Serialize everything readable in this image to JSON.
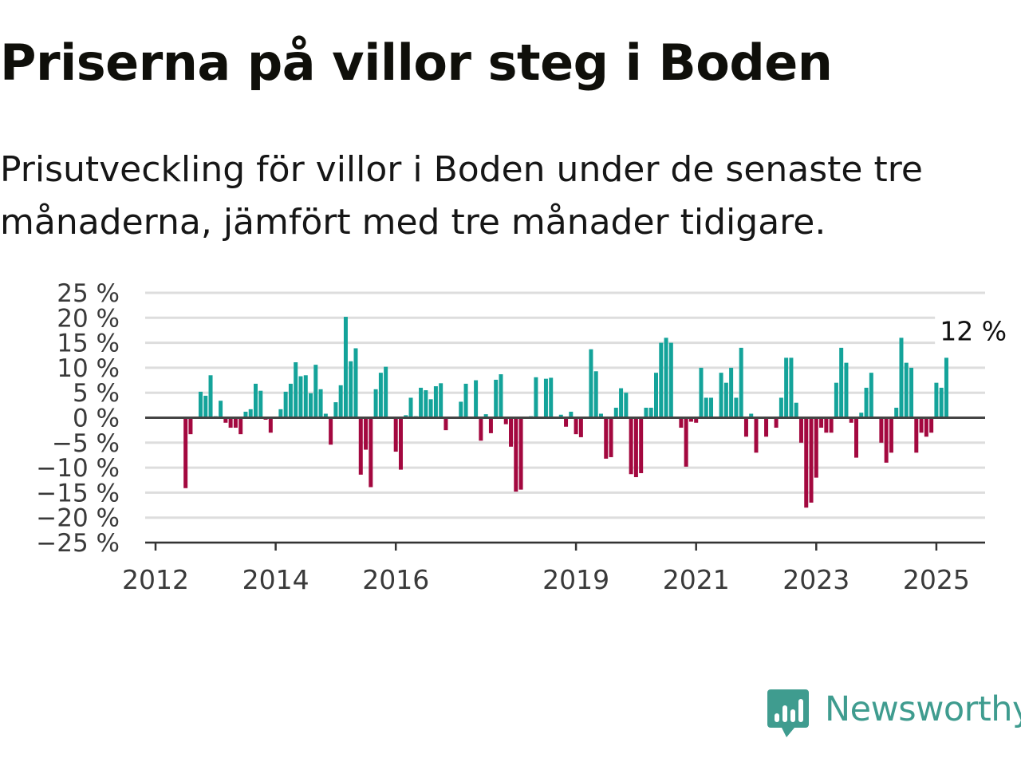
{
  "header": {
    "title": "Priserna på villor steg i Boden",
    "subtitle": "Prisutveckling för villor i Boden under de senaste tre månaderna, jämfört med tre månader tidigare."
  },
  "brand": {
    "name": "Newsworthy",
    "color": "#3f9c8f",
    "icon": "newsworthy-logo-icon"
  },
  "colors": {
    "positive": "#14a39a",
    "negative": "#a3083f",
    "zero_line": "#444444",
    "grid": "#dddddd"
  },
  "chart_data": {
    "type": "bar",
    "x_unit": "month",
    "x_start": "2012-01",
    "x_end": "2025-04",
    "ylim": [
      -25,
      25
    ],
    "y_ticks": [
      "25 %",
      "20 %",
      "15 %",
      "10 %",
      "5 %",
      "0 %",
      "−5 %",
      "−10 %",
      "−15 %",
      "−20 %",
      "−25 %"
    ],
    "y_tick_values": [
      25,
      20,
      15,
      10,
      5,
      0,
      -5,
      -10,
      -15,
      -20,
      -25
    ],
    "x_ticks": [
      {
        "label": "2012",
        "date": "2012-01"
      },
      {
        "label": "2014",
        "date": "2014-01"
      },
      {
        "label": "2016",
        "date": "2016-01"
      },
      {
        "label": "2019",
        "date": "2019-01"
      },
      {
        "label": "2021",
        "date": "2021-01"
      },
      {
        "label": "2023",
        "date": "2023-01"
      },
      {
        "label": "2025",
        "date": "2025-01"
      }
    ],
    "grid": true,
    "annotation": {
      "text": "12 %",
      "date": "2025-02",
      "value": 12
    },
    "points": [
      {
        "date": "2012-07",
        "value": -14.1
      },
      {
        "date": "2012-08",
        "value": -3.3
      },
      {
        "date": "2012-10",
        "value": 5.2
      },
      {
        "date": "2012-11",
        "value": 4.4
      },
      {
        "date": "2012-12",
        "value": 8.5
      },
      {
        "date": "2013-01",
        "value": 0.3
      },
      {
        "date": "2013-02",
        "value": 3.4
      },
      {
        "date": "2013-03",
        "value": -1
      },
      {
        "date": "2013-04",
        "value": -2
      },
      {
        "date": "2013-05",
        "value": -2
      },
      {
        "date": "2013-06",
        "value": -3.3
      },
      {
        "date": "2013-07",
        "value": 1.2
      },
      {
        "date": "2013-08",
        "value": 1.7
      },
      {
        "date": "2013-09",
        "value": 6.8
      },
      {
        "date": "2013-10",
        "value": 5.4
      },
      {
        "date": "2013-11",
        "value": -0.4
      },
      {
        "date": "2013-12",
        "value": -3
      },
      {
        "date": "2014-02",
        "value": 1.7
      },
      {
        "date": "2014-03",
        "value": 5.2
      },
      {
        "date": "2014-04",
        "value": 6.8
      },
      {
        "date": "2014-05",
        "value": 11.1
      },
      {
        "date": "2014-06",
        "value": 8.3
      },
      {
        "date": "2014-07",
        "value": 8.5
      },
      {
        "date": "2014-08",
        "value": 4.9
      },
      {
        "date": "2014-09",
        "value": 10.6
      },
      {
        "date": "2014-10",
        "value": 5.7
      },
      {
        "date": "2014-11",
        "value": 0.8
      },
      {
        "date": "2014-12",
        "value": -5.4
      },
      {
        "date": "2015-01",
        "value": 3.1
      },
      {
        "date": "2015-02",
        "value": 6.5
      },
      {
        "date": "2015-03",
        "value": 20.2
      },
      {
        "date": "2015-04",
        "value": 11.3
      },
      {
        "date": "2015-05",
        "value": 13.9
      },
      {
        "date": "2015-06",
        "value": -11.4
      },
      {
        "date": "2015-07",
        "value": -6.4
      },
      {
        "date": "2015-08",
        "value": -13.9
      },
      {
        "date": "2015-09",
        "value": 5.7
      },
      {
        "date": "2015-10",
        "value": 9
      },
      {
        "date": "2015-11",
        "value": 10.2
      },
      {
        "date": "2016-01",
        "value": -6.8
      },
      {
        "date": "2016-02",
        "value": -10.4
      },
      {
        "date": "2016-03",
        "value": 0.5
      },
      {
        "date": "2016-04",
        "value": 4
      },
      {
        "date": "2016-05",
        "value": 0.3
      },
      {
        "date": "2016-06",
        "value": 6
      },
      {
        "date": "2016-07",
        "value": 5.5
      },
      {
        "date": "2016-08",
        "value": 3.7
      },
      {
        "date": "2016-09",
        "value": 6.3
      },
      {
        "date": "2016-10",
        "value": 6.9
      },
      {
        "date": "2016-11",
        "value": -2.5
      },
      {
        "date": "2017-01",
        "value": -0.2
      },
      {
        "date": "2017-02",
        "value": 3.2
      },
      {
        "date": "2017-03",
        "value": 6.8
      },
      {
        "date": "2017-05",
        "value": 7.5
      },
      {
        "date": "2017-06",
        "value": -4.6
      },
      {
        "date": "2017-07",
        "value": 0.7
      },
      {
        "date": "2017-08",
        "value": -3.1
      },
      {
        "date": "2017-09",
        "value": 7.6
      },
      {
        "date": "2017-10",
        "value": 8.7
      },
      {
        "date": "2017-11",
        "value": -1.3
      },
      {
        "date": "2017-12",
        "value": -5.8
      },
      {
        "date": "2018-01",
        "value": -14.8
      },
      {
        "date": "2018-02",
        "value": -14.4
      },
      {
        "date": "2018-04",
        "value": 0.3
      },
      {
        "date": "2018-05",
        "value": 8.1
      },
      {
        "date": "2018-07",
        "value": 7.8
      },
      {
        "date": "2018-08",
        "value": 8
      },
      {
        "date": "2018-10",
        "value": 0.6
      },
      {
        "date": "2018-11",
        "value": -1.8
      },
      {
        "date": "2018-12",
        "value": 1.2
      },
      {
        "date": "2019-01",
        "value": -3.3
      },
      {
        "date": "2019-02",
        "value": -3.9
      },
      {
        "date": "2019-04",
        "value": 13.7
      },
      {
        "date": "2019-05",
        "value": 9.3
      },
      {
        "date": "2019-06",
        "value": 0.8
      },
      {
        "date": "2019-07",
        "value": -8.2
      },
      {
        "date": "2019-08",
        "value": -7.9
      },
      {
        "date": "2019-09",
        "value": 2
      },
      {
        "date": "2019-10",
        "value": 5.9
      },
      {
        "date": "2019-11",
        "value": 5
      },
      {
        "date": "2019-12",
        "value": -11.3
      },
      {
        "date": "2020-01",
        "value": -11.9
      },
      {
        "date": "2020-02",
        "value": -11.1
      },
      {
        "date": "2020-03",
        "value": 2
      },
      {
        "date": "2020-04",
        "value": 2
      },
      {
        "date": "2020-05",
        "value": 9
      },
      {
        "date": "2020-06",
        "value": 15
      },
      {
        "date": "2020-07",
        "value": 16
      },
      {
        "date": "2020-08",
        "value": 15
      },
      {
        "date": "2020-10",
        "value": -2
      },
      {
        "date": "2020-11",
        "value": -9.8
      },
      {
        "date": "2020-12",
        "value": -0.8
      },
      {
        "date": "2021-01",
        "value": -1
      },
      {
        "date": "2021-02",
        "value": 10
      },
      {
        "date": "2021-03",
        "value": 4
      },
      {
        "date": "2021-04",
        "value": 4
      },
      {
        "date": "2021-06",
        "value": 9
      },
      {
        "date": "2021-07",
        "value": 7
      },
      {
        "date": "2021-08",
        "value": 10
      },
      {
        "date": "2021-09",
        "value": 4
      },
      {
        "date": "2021-10",
        "value": 14
      },
      {
        "date": "2021-11",
        "value": -3.8
      },
      {
        "date": "2021-12",
        "value": 0.8
      },
      {
        "date": "2022-01",
        "value": -7
      },
      {
        "date": "2022-03",
        "value": -3.8
      },
      {
        "date": "2022-05",
        "value": -2
      },
      {
        "date": "2022-06",
        "value": 4
      },
      {
        "date": "2022-07",
        "value": 12
      },
      {
        "date": "2022-08",
        "value": 12
      },
      {
        "date": "2022-09",
        "value": 3
      },
      {
        "date": "2022-10",
        "value": -5
      },
      {
        "date": "2022-11",
        "value": -18
      },
      {
        "date": "2022-12",
        "value": -17
      },
      {
        "date": "2023-01",
        "value": -12
      },
      {
        "date": "2023-02",
        "value": -2
      },
      {
        "date": "2023-03",
        "value": -3
      },
      {
        "date": "2023-04",
        "value": -3
      },
      {
        "date": "2023-05",
        "value": 7
      },
      {
        "date": "2023-06",
        "value": 14
      },
      {
        "date": "2023-07",
        "value": 11
      },
      {
        "date": "2023-08",
        "value": -1
      },
      {
        "date": "2023-09",
        "value": -8
      },
      {
        "date": "2023-10",
        "value": 1
      },
      {
        "date": "2023-11",
        "value": 6
      },
      {
        "date": "2023-12",
        "value": 9
      },
      {
        "date": "2024-02",
        "value": -5
      },
      {
        "date": "2024-03",
        "value": -9
      },
      {
        "date": "2024-04",
        "value": -7
      },
      {
        "date": "2024-05",
        "value": 2
      },
      {
        "date": "2024-06",
        "value": 16
      },
      {
        "date": "2024-07",
        "value": 11
      },
      {
        "date": "2024-08",
        "value": 10
      },
      {
        "date": "2024-09",
        "value": -7
      },
      {
        "date": "2024-10",
        "value": -3
      },
      {
        "date": "2024-11",
        "value": -3.8
      },
      {
        "date": "2024-12",
        "value": -3
      },
      {
        "date": "2025-01",
        "value": 7
      },
      {
        "date": "2025-02",
        "value": 6
      },
      {
        "date": "2025-03",
        "value": 12
      }
    ]
  }
}
